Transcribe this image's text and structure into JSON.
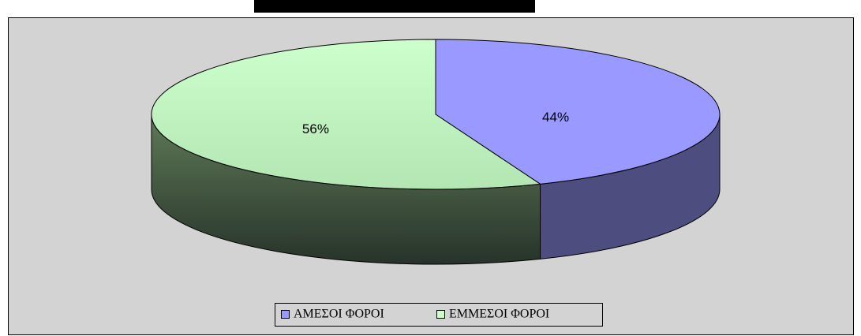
{
  "chart_data": {
    "type": "pie",
    "series": [
      {
        "name": "ΑΜΕΣΟΙ ΦΟΡΟΙ",
        "color": "#9999ff",
        "values": [
          44
        ],
        "value_labels": [
          "44%"
        ]
      },
      {
        "name": "ΕΜΜΕΣΟΙ ΦΟΡΟΙ",
        "color": "#ccffcc",
        "values": [
          56
        ],
        "value_labels": [
          "56%"
        ]
      }
    ],
    "legend": "bottom"
  }
}
